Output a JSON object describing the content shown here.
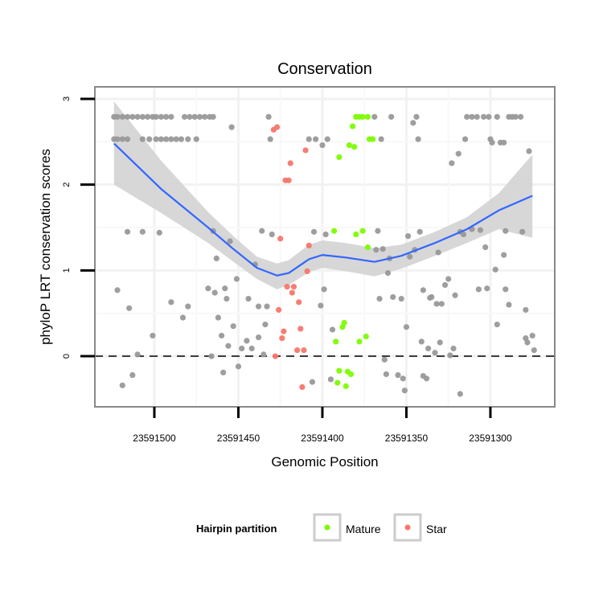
{
  "chart_data": {
    "type": "scatter",
    "title": "Conservation",
    "xlabel": "Genomic Position",
    "ylabel": "phyloP LRT conservation scores",
    "x_reversed": true,
    "xlim": [
      23591535.4,
      23591261.7
    ],
    "ylim": [
      -0.59,
      3.14
    ],
    "x_ticks": [
      23591500,
      23591450,
      23591400,
      23591350,
      23591300
    ],
    "x_tick_labels": [
      "23591500",
      "23591450",
      "23591400",
      "23591350",
      "23591300"
    ],
    "y_ticks": [
      0,
      1,
      2,
      3
    ],
    "y_tick_labels": [
      "0",
      "1",
      "2",
      "3"
    ],
    "grid": true,
    "reference_line": {
      "y": 0,
      "style": "dashed"
    },
    "legend": {
      "title": "Hairpin partition",
      "placement": "bottom",
      "entries": [
        {
          "label": "Mature",
          "color": "#7CFC00"
        },
        {
          "label": "Star",
          "color": "#F8766D"
        }
      ]
    },
    "colors": {
      "other": "#999999",
      "smooth": "#3366FF",
      "ribbon": "#D3D3D3"
    },
    "series": [
      {
        "name": "Other",
        "points": [
          [
            23591524,
            2.79
          ],
          [
            23591522,
            2.79
          ],
          [
            23591519,
            2.79
          ],
          [
            23591516,
            2.79
          ],
          [
            23591513,
            2.79
          ],
          [
            23591510,
            2.79
          ],
          [
            23591507,
            2.79
          ],
          [
            23591504,
            2.79
          ],
          [
            23591501,
            2.79
          ],
          [
            23591499,
            2.79
          ],
          [
            23591496,
            2.79
          ],
          [
            23591493,
            2.79
          ],
          [
            23591490,
            2.79
          ],
          [
            23591482,
            2.79
          ],
          [
            23591479,
            2.79
          ],
          [
            23591476,
            2.79
          ],
          [
            23591473,
            2.79
          ],
          [
            23591470,
            2.79
          ],
          [
            23591467,
            2.79
          ],
          [
            23591465,
            2.79
          ],
          [
            23591432,
            2.79
          ],
          [
            23591369,
            2.79
          ],
          [
            23591359,
            2.79
          ],
          [
            23591344,
            2.79
          ],
          [
            23591314,
            2.79
          ],
          [
            23591311,
            2.79
          ],
          [
            23591308,
            2.79
          ],
          [
            23591304,
            2.79
          ],
          [
            23591301,
            2.79
          ],
          [
            23591296,
            2.79
          ],
          [
            23591289,
            2.79
          ],
          [
            23591287,
            2.79
          ],
          [
            23591285,
            2.79
          ],
          [
            23591282,
            2.79
          ],
          [
            23591346,
            2.72
          ],
          [
            23591524,
            2.53
          ],
          [
            23591522,
            2.53
          ],
          [
            23591519,
            2.53
          ],
          [
            23591516,
            2.53
          ],
          [
            23591507,
            2.53
          ],
          [
            23591503,
            2.53
          ],
          [
            23591499,
            2.53
          ],
          [
            23591496,
            2.53
          ],
          [
            23591493,
            2.53
          ],
          [
            23591490,
            2.53
          ],
          [
            23591487,
            2.53
          ],
          [
            23591484,
            2.53
          ],
          [
            23591480,
            2.53
          ],
          [
            23591475,
            2.53
          ],
          [
            23591431,
            2.53
          ],
          [
            23591408,
            2.53
          ],
          [
            23591404,
            2.53
          ],
          [
            23591397,
            2.53
          ],
          [
            23591400,
            2.46
          ],
          [
            23591365,
            2.53
          ],
          [
            23591343,
            2.53
          ],
          [
            23591315,
            2.53
          ],
          [
            23591300,
            2.53
          ],
          [
            23591299,
            2.49
          ],
          [
            23591294,
            2.49
          ],
          [
            23591292,
            2.49
          ],
          [
            23591319,
            2.36
          ],
          [
            23591323,
            2.25
          ],
          [
            23591277,
            2.39
          ],
          [
            23591454,
            2.67
          ],
          [
            23591516,
            1.45
          ],
          [
            23591507,
            1.45
          ],
          [
            23591497,
            1.44
          ],
          [
            23591465,
            1.46
          ],
          [
            23591455,
            1.34
          ],
          [
            23591463,
            1.14
          ],
          [
            23591440,
            1.07
          ],
          [
            23591451,
            0.9
          ],
          [
            23591436,
            1.46
          ],
          [
            23591430,
            1.42
          ],
          [
            23591405,
            1.45
          ],
          [
            23591398,
            1.42
          ],
          [
            23591522,
            0.77
          ],
          [
            23591515,
            0.56
          ],
          [
            23591490,
            0.63
          ],
          [
            23591480,
            0.58
          ],
          [
            23591483,
            0.45
          ],
          [
            23591501,
            0.24
          ],
          [
            23591468,
            0.79
          ],
          [
            23591464,
            0.74
          ],
          [
            23591458,
            0.79
          ],
          [
            23591457,
            0.67
          ],
          [
            23591444,
            0.67
          ],
          [
            23591438,
            0.58
          ],
          [
            23591433,
            0.58
          ],
          [
            23591462,
            0.45
          ],
          [
            23591453,
            0.35
          ],
          [
            23591460,
            0.24
          ],
          [
            23591456,
            0.12
          ],
          [
            23591448,
            0.09
          ],
          [
            23591445,
            0.18
          ],
          [
            23591442,
            0.09
          ],
          [
            23591438,
            0.22
          ],
          [
            23591434,
            0.37
          ],
          [
            23591435,
            0.02
          ],
          [
            23591466,
            0.0
          ],
          [
            23591510,
            0.02
          ],
          [
            23591513,
            -0.22
          ],
          [
            23591519,
            -0.34
          ],
          [
            23591459,
            -0.19
          ],
          [
            23591450,
            -0.12
          ],
          [
            23591399,
            0.78
          ],
          [
            23591401,
            0.59
          ],
          [
            23591406,
            -0.3
          ],
          [
            23591367,
            1.46
          ],
          [
            23591368,
            1.24
          ],
          [
            23591364,
            1.25
          ],
          [
            23591360,
            1.14
          ],
          [
            23591349,
            1.4
          ],
          [
            23591342,
            1.45
          ],
          [
            23591348,
            1.16
          ],
          [
            23591345,
            1.24
          ],
          [
            23591331,
            1.21
          ],
          [
            23591361,
            0.97
          ],
          [
            23591318,
            1.45
          ],
          [
            23591316,
            1.42
          ],
          [
            23591311,
            1.48
          ],
          [
            23591306,
            1.47
          ],
          [
            23591303,
            1.27
          ],
          [
            23591291,
            1.46
          ],
          [
            23591281,
            1.45
          ],
          [
            23591292,
            1.18
          ],
          [
            23591297,
            1.01
          ],
          [
            23591366,
            0.67
          ],
          [
            23591358,
            0.69
          ],
          [
            23591353,
            0.67
          ],
          [
            23591340,
            0.77
          ],
          [
            23591336,
            0.68
          ],
          [
            23591335,
            0.69
          ],
          [
            23591332,
            0.61
          ],
          [
            23591329,
            0.61
          ],
          [
            23591327,
            0.83
          ],
          [
            23591325,
            0.9
          ],
          [
            23591321,
            0.71
          ],
          [
            23591307,
            0.78
          ],
          [
            23591302,
            0.79
          ],
          [
            23591291,
            0.78
          ],
          [
            23591289,
            0.6
          ],
          [
            23591279,
            0.54
          ],
          [
            23591296,
            0.37
          ],
          [
            23591350,
            0.34
          ],
          [
            23591394,
            0.31
          ],
          [
            23591341,
            0.17
          ],
          [
            23591337,
            0.09
          ],
          [
            23591330,
            0.16
          ],
          [
            23591333,
            0.04
          ],
          [
            23591324,
            0.01
          ],
          [
            23591322,
            0.09
          ],
          [
            23591363,
            -0.04
          ],
          [
            23591279,
            0.21
          ],
          [
            23591275,
            0.24
          ],
          [
            23591278,
            0.16
          ],
          [
            23591274,
            0.07
          ],
          [
            23591362,
            -0.21
          ],
          [
            23591355,
            -0.22
          ],
          [
            23591352,
            -0.26
          ],
          [
            23591340,
            -0.23
          ],
          [
            23591338,
            -0.26
          ],
          [
            23591351,
            -0.4
          ],
          [
            23591318,
            -0.44
          ],
          [
            23591395,
            -0.27
          ]
        ]
      },
      {
        "name": "Star",
        "points": [
          [
            23591427,
            2.67
          ],
          [
            23591429,
            2.64
          ],
          [
            23591410,
            2.4
          ],
          [
            23591419,
            2.25
          ],
          [
            23591422,
            2.05
          ],
          [
            23591420,
            2.05
          ],
          [
            23591425,
            1.37
          ],
          [
            23591408,
            1.29
          ],
          [
            23591409,
            0.99
          ],
          [
            23591421,
            0.81
          ],
          [
            23591417,
            0.81
          ],
          [
            23591418,
            0.74
          ],
          [
            23591414,
            0.63
          ],
          [
            23591426,
            0.54
          ],
          [
            23591423,
            0.29
          ],
          [
            23591424,
            0.21
          ],
          [
            23591413,
            0.32
          ],
          [
            23591415,
            0.07
          ],
          [
            23591411,
            0.07
          ],
          [
            23591428,
            0.0
          ],
          [
            23591412,
            -0.36
          ]
        ]
      },
      {
        "name": "Mature",
        "points": [
          [
            23591380,
            2.79
          ],
          [
            23591378,
            2.79
          ],
          [
            23591376,
            2.79
          ],
          [
            23591373,
            2.79
          ],
          [
            23591382,
            2.68
          ],
          [
            23591384,
            2.46
          ],
          [
            23591381,
            2.44
          ],
          [
            23591390,
            2.32
          ],
          [
            23591372,
            2.53
          ],
          [
            23591370,
            2.53
          ],
          [
            23591393,
            1.46
          ],
          [
            23591380,
            1.42
          ],
          [
            23591376,
            1.46
          ],
          [
            23591373,
            1.27
          ],
          [
            23591387,
            0.39
          ],
          [
            23591388,
            0.34
          ],
          [
            23591392,
            0.17
          ],
          [
            23591378,
            0.17
          ],
          [
            23591374,
            0.23
          ],
          [
            23591390,
            -0.17
          ],
          [
            23591385,
            -0.18
          ],
          [
            23591383,
            -0.21
          ],
          [
            23591391,
            -0.31
          ],
          [
            23591386,
            -0.35
          ]
        ]
      }
    ],
    "smooth": {
      "x": [
        23591524,
        23591496,
        23591468,
        23591453,
        23591439,
        23591427,
        23591420,
        23591408,
        23591400,
        23591386,
        23591369,
        23591353,
        23591333,
        23591314,
        23591295,
        23591275
      ],
      "y": [
        2.48,
        1.95,
        1.5,
        1.25,
        1.03,
        0.94,
        0.97,
        1.13,
        1.18,
        1.15,
        1.1,
        1.17,
        1.32,
        1.48,
        1.7,
        1.87
      ],
      "upper": [
        2.97,
        2.28,
        1.68,
        1.4,
        1.16,
        1.08,
        1.12,
        1.3,
        1.35,
        1.32,
        1.26,
        1.3,
        1.45,
        1.62,
        1.9,
        2.35
      ],
      "lower": [
        2.0,
        1.67,
        1.32,
        1.1,
        0.9,
        0.78,
        0.83,
        0.98,
        1.03,
        0.99,
        0.93,
        1.02,
        1.17,
        1.32,
        1.48,
        1.38
      ]
    }
  }
}
